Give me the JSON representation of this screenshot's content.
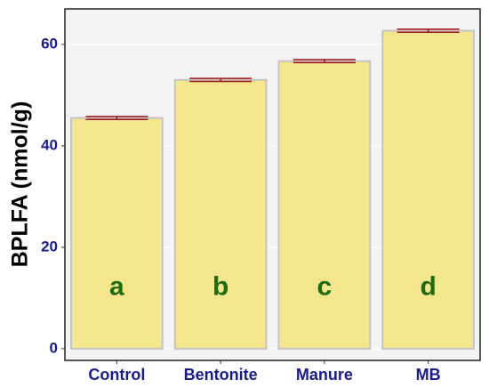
{
  "chart_data": {
    "type": "bar",
    "ylabel": "BPLFA (nmol/g)",
    "categories": [
      "Control",
      "Bentonite",
      "Manure",
      "MB"
    ],
    "values": [
      45.5,
      53,
      56.7,
      62.7
    ],
    "errors": [
      0.3,
      0.3,
      0.3,
      0.3
    ],
    "letters": [
      "a",
      "b",
      "c",
      "d"
    ],
    "letter_y": 12,
    "color": "#f3e68c",
    "edge_color": "#c4c4c4",
    "error_color": "#a31515",
    "ylim": [
      -2.3,
      67
    ],
    "yticks": [
      0,
      20,
      40,
      60
    ],
    "grid": true
  }
}
